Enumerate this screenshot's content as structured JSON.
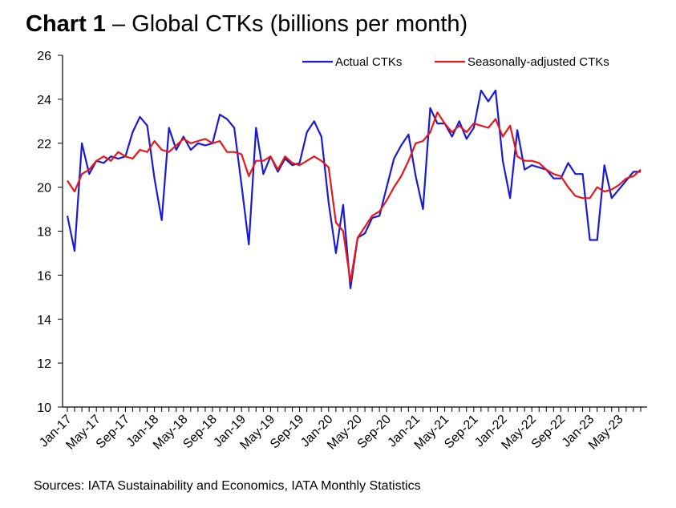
{
  "title_bold": "Chart 1",
  "title_rest": " – Global CTKs (billions per month)",
  "source": "Sources: IATA Sustainability and Economics, IATA Monthly Statistics",
  "chart_data": {
    "type": "line",
    "title": "Chart 1 – Global CTKs (billions per month)",
    "xlabel": "",
    "ylabel": "",
    "ylim": [
      10,
      26
    ],
    "yticks": [
      10,
      12,
      14,
      16,
      18,
      20,
      22,
      24,
      26
    ],
    "x_tick_labels": [
      "Jan-17",
      "May-17",
      "Sep-17",
      "Jan-18",
      "May-18",
      "Sep-18",
      "Jan-19",
      "May-19",
      "Sep-19",
      "Jan-20",
      "May-20",
      "Sep-20",
      "Jan-21",
      "May-21",
      "Sep-21",
      "Jan-22",
      "May-22",
      "Sep-22",
      "Jan-23",
      "May-23"
    ],
    "x_start": "Jan-17",
    "x_end": "Jul-23",
    "legend_position": "top-right",
    "grid": false,
    "series": [
      {
        "name": "Actual CTKs",
        "color": "#1a1ad4",
        "values": [
          18.7,
          17.1,
          22.0,
          20.6,
          21.2,
          21.1,
          21.4,
          21.3,
          21.4,
          22.5,
          23.2,
          22.8,
          20.4,
          18.5,
          22.7,
          21.7,
          22.3,
          21.7,
          22.0,
          21.9,
          22.0,
          23.3,
          23.1,
          22.7,
          20.1,
          17.4,
          22.7,
          20.6,
          21.4,
          20.7,
          21.3,
          21.0,
          21.1,
          22.5,
          23.0,
          22.3,
          19.3,
          17.0,
          19.2,
          15.4,
          17.7,
          17.9,
          18.6,
          18.7,
          20.0,
          21.3,
          21.9,
          22.4,
          20.5,
          19.0,
          23.6,
          22.9,
          22.9,
          22.3,
          23.0,
          22.2,
          22.7,
          24.4,
          23.9,
          24.4,
          21.2,
          19.5,
          22.6,
          20.8,
          21.0,
          20.9,
          20.8,
          20.4,
          20.4,
          21.1,
          20.6,
          20.6,
          17.6,
          17.6,
          21.0,
          19.5,
          19.9,
          20.3,
          20.7,
          20.7
        ]
      },
      {
        "name": "Seasonally-adjusted CTKs",
        "color": "#e8171b",
        "values": [
          20.3,
          19.8,
          20.6,
          20.8,
          21.2,
          21.4,
          21.2,
          21.6,
          21.4,
          21.3,
          21.7,
          21.6,
          22.1,
          21.7,
          21.6,
          21.9,
          22.2,
          22.0,
          22.1,
          22.2,
          22.0,
          22.1,
          21.6,
          21.6,
          21.5,
          20.5,
          21.2,
          21.2,
          21.4,
          20.8,
          21.4,
          21.1,
          21.0,
          21.2,
          21.4,
          21.2,
          20.9,
          18.4,
          18.0,
          15.7,
          17.7,
          18.2,
          18.7,
          18.9,
          19.4,
          20.0,
          20.5,
          21.2,
          22.0,
          22.1,
          22.5,
          23.4,
          22.9,
          22.5,
          22.8,
          22.5,
          22.9,
          22.8,
          22.7,
          23.1,
          22.3,
          22.8,
          21.4,
          21.2,
          21.2,
          21.1,
          20.8,
          20.6,
          20.5,
          20.0,
          19.6,
          19.5,
          19.5,
          20.0,
          19.8,
          19.9,
          20.1,
          20.4,
          20.5,
          20.8
        ]
      }
    ]
  }
}
